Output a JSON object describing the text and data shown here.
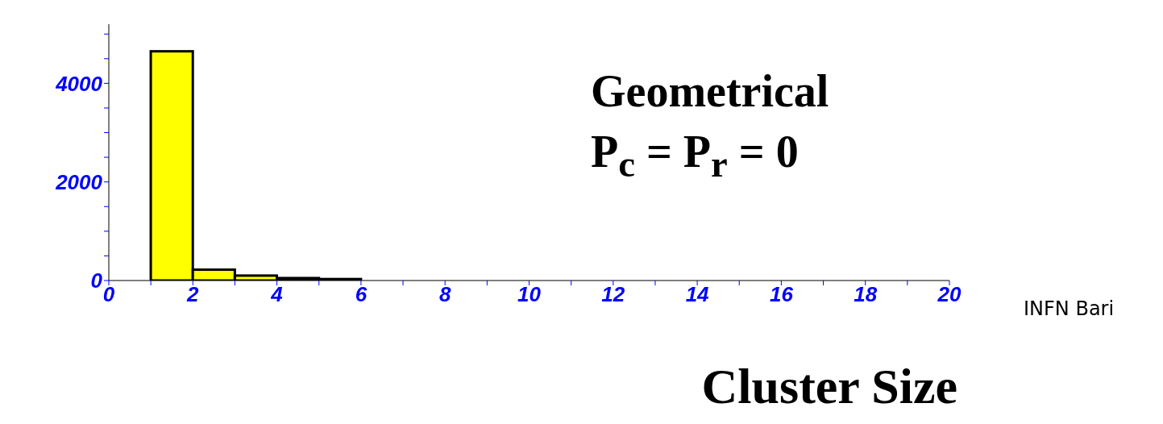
{
  "chart_data": {
    "type": "histogram",
    "xlabel": "Cluster Size",
    "bins": [
      0,
      1,
      2,
      3,
      4,
      5,
      6,
      7,
      8,
      9,
      10,
      11,
      12,
      13,
      14,
      15,
      16,
      17,
      18,
      19,
      20
    ],
    "values": [
      0,
      4650,
      220,
      100,
      50,
      30,
      null,
      null,
      null,
      null,
      0,
      0,
      0,
      0,
      0,
      0,
      0,
      0,
      0,
      0
    ],
    "color": "#ffff00",
    "xlim": [
      0,
      20
    ],
    "xticks": [
      0,
      {
        "value": 1,
        "label": null
      },
      2,
      {
        "value": 3,
        "label": null
      },
      4,
      {
        "value": 5,
        "label": null
      },
      6,
      {
        "value": 7,
        "label": null
      },
      8,
      {
        "value": 9,
        "label": null
      },
      10,
      {
        "value": 11,
        "label": null
      },
      12,
      {
        "value": 13,
        "label": null
      },
      14,
      {
        "value": 15,
        "label": null
      },
      16,
      {
        "value": 17,
        "label": null
      },
      18,
      {
        "value": 19,
        "label": null
      },
      20
    ],
    "ylim": [
      0,
      5200
    ],
    "yticks": [
      0,
      {
        "value": 500,
        "label": null
      },
      {
        "value": 1000,
        "label": null
      },
      {
        "value": 1500,
        "label": null
      },
      2000,
      {
        "value": 2500,
        "label": null
      },
      {
        "value": 3000,
        "label": null
      },
      {
        "value": 3500,
        "label": null
      },
      4000,
      {
        "value": 4500,
        "label": null
      },
      {
        "value": 5000,
        "label": null
      }
    ],
    "grid": false,
    "legend": false,
    "annotations": [
      "Geometrical",
      "P$_{c}$ = P$_{r}$ = 0",
      "INFN Bari"
    ]
  }
}
